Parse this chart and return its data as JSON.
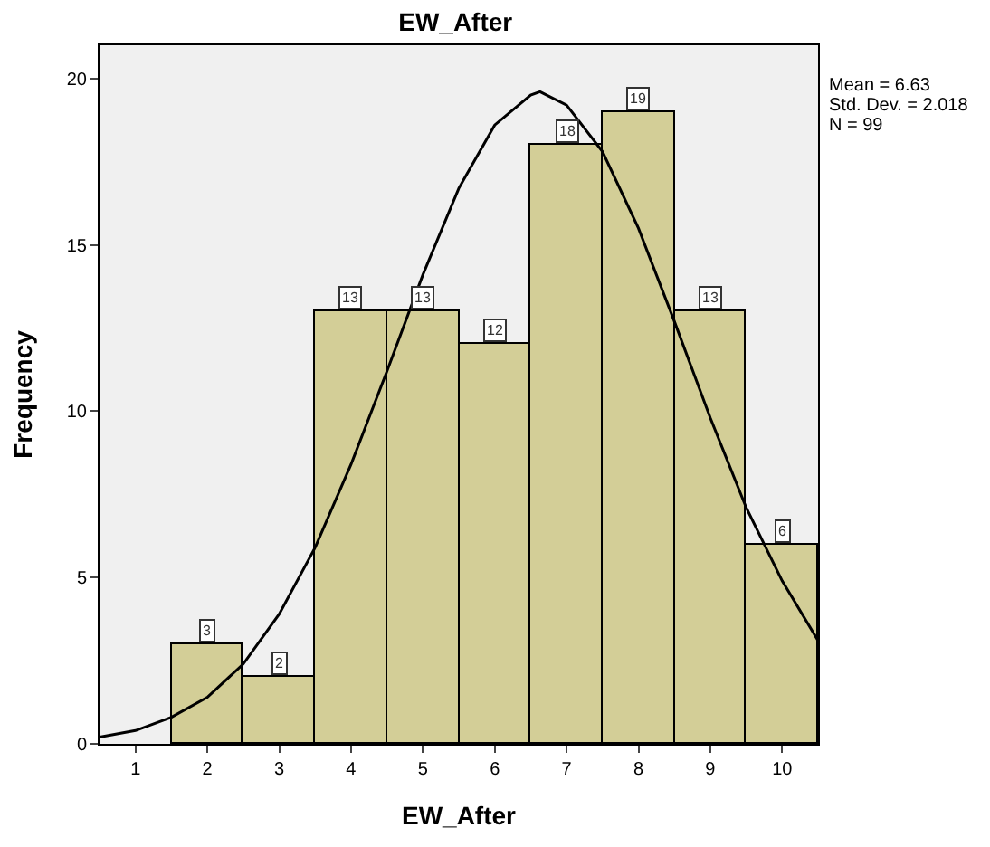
{
  "chart_data": {
    "type": "histogram",
    "title": "EW_After",
    "xlabel": "EW_After",
    "ylabel": "Frequency",
    "bins": [
      1.5,
      2.5,
      3.5,
      4.5,
      5.5,
      6.5,
      7.5,
      8.5,
      9.5,
      10.5
    ],
    "values": [
      3,
      2,
      13,
      13,
      12,
      18,
      19,
      13,
      6
    ],
    "color": "#d3ce97",
    "value_labels": [
      "3",
      "2",
      "13",
      "13",
      "12",
      "18",
      "19",
      "13",
      "6"
    ],
    "series": [
      {
        "type": "line",
        "color": "#000000",
        "x": [
          0.5,
          1,
          1.5,
          2,
          2.5,
          3,
          3.5,
          4,
          4.5,
          5,
          5.5,
          6,
          6.5,
          6.63,
          7,
          7.5,
          8,
          8.5,
          9,
          9.5,
          10,
          10.5
        ],
        "values": [
          0.2,
          0.4,
          0.8,
          1.4,
          2.4,
          3.9,
          5.9,
          8.4,
          11.2,
          14.1,
          16.7,
          18.6,
          19.5,
          19.6,
          19.2,
          17.8,
          15.5,
          12.7,
          9.8,
          7.1,
          4.9,
          3.1
        ]
      }
    ],
    "xlim": [
      0.5,
      10.5
    ],
    "xticks": [
      1,
      2,
      3,
      4,
      5,
      6,
      7,
      8,
      9,
      10
    ],
    "ylim": [
      0,
      21
    ],
    "yticks": [
      0,
      5,
      10,
      15,
      20
    ],
    "grid": false,
    "annotations": [
      "Mean = 6.63",
      "Std. Dev. = 2.018",
      "N = 99"
    ]
  }
}
